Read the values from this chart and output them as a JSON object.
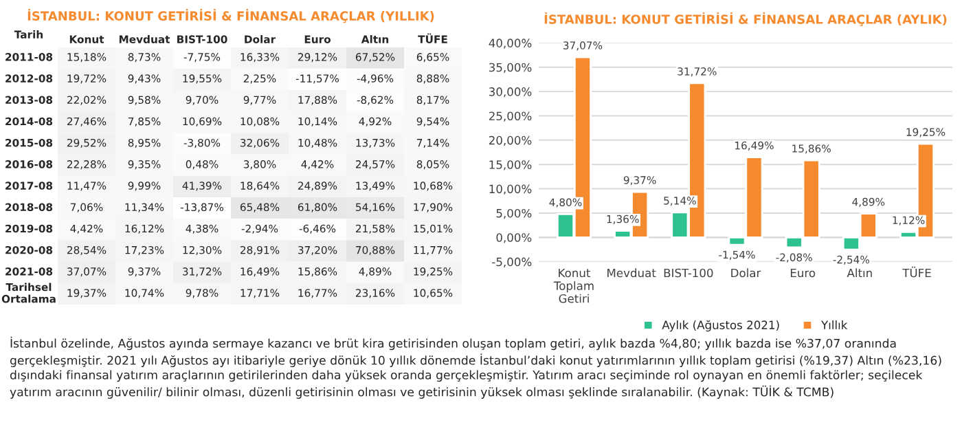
{
  "chart_data": [
    {
      "type": "heatmap",
      "title": "İSTANBUL: KONUT GETİRİSİ & FİNANSAL ARAÇLAR (YILLIK)",
      "ylabel": "Tarih",
      "categories": [
        "Konut",
        "Mevduat",
        "BIST-100",
        "Dolar",
        "Euro",
        "Altın",
        "TÜFE"
      ],
      "y_categories": [
        "2011-08",
        "2012-08",
        "2013-08",
        "2014-08",
        "2015-08",
        "2016-08",
        "2017-08",
        "2018-08",
        "2019-08",
        "2020-08",
        "2021-08",
        "Tarihsel\nOrtalama"
      ],
      "cells": [
        [
          15.18,
          8.73,
          -7.75,
          16.33,
          29.12,
          67.52,
          6.65
        ],
        [
          19.72,
          9.43,
          19.55,
          2.25,
          -11.57,
          -4.96,
          8.88
        ],
        [
          22.02,
          9.58,
          9.7,
          9.77,
          17.88,
          -8.62,
          8.17
        ],
        [
          27.46,
          7.85,
          10.69,
          10.08,
          10.14,
          4.92,
          9.54
        ],
        [
          29.52,
          8.95,
          -3.8,
          32.06,
          10.48,
          13.73,
          7.14
        ],
        [
          22.28,
          9.35,
          0.48,
          3.8,
          4.42,
          24.57,
          8.05
        ],
        [
          11.47,
          9.99,
          41.39,
          18.64,
          24.89,
          13.49,
          10.68
        ],
        [
          7.06,
          11.34,
          -13.87,
          65.48,
          61.8,
          54.16,
          17.9
        ],
        [
          4.42,
          16.12,
          4.38,
          -2.94,
          -6.46,
          21.58,
          15.01
        ],
        [
          28.54,
          17.23,
          12.3,
          28.91,
          37.2,
          70.88,
          11.77
        ],
        [
          37.07,
          9.37,
          31.72,
          16.49,
          15.86,
          4.89,
          19.25
        ],
        [
          19.37,
          10.74,
          9.78,
          17.71,
          16.77,
          23.16,
          10.65
        ]
      ],
      "cell_labels": [
        [
          "15,18%",
          "8,73%",
          "-7,75%",
          "16,33%",
          "29,12%",
          "67,52%",
          "6,65%"
        ],
        [
          "19,72%",
          "9,43%",
          "19,55%",
          "2,25%",
          "-11,57%",
          "-4,96%",
          "8,88%"
        ],
        [
          "22,02%",
          "9,58%",
          "9,70%",
          "9,77%",
          "17,88%",
          "-8,62%",
          "8,17%"
        ],
        [
          "27,46%",
          "7,85%",
          "10,69%",
          "10,08%",
          "10,14%",
          "4,92%",
          "9,54%"
        ],
        [
          "29,52%",
          "8,95%",
          "-3,80%",
          "32,06%",
          "10,48%",
          "13,73%",
          "7,14%"
        ],
        [
          "22,28%",
          "9,35%",
          "0,48%",
          "3,80%",
          "4,42%",
          "24,57%",
          "8,05%"
        ],
        [
          "11,47%",
          "9,99%",
          "41,39%",
          "18,64%",
          "24,89%",
          "13,49%",
          "10,68%"
        ],
        [
          "7,06%",
          "11,34%",
          "-13,87%",
          "65,48%",
          "61,80%",
          "54,16%",
          "17,90%"
        ],
        [
          "4,42%",
          "16,12%",
          "4,38%",
          "-2,94%",
          "-6,46%",
          "21,58%",
          "15,01%"
        ],
        [
          "28,54%",
          "17,23%",
          "12,30%",
          "28,91%",
          "37,20%",
          "70,88%",
          "11,77%"
        ],
        [
          "37,07%",
          "9,37%",
          "31,72%",
          "16,49%",
          "15,86%",
          "4,89%",
          "19,25%"
        ],
        [
          "19,37%",
          "10,74%",
          "9,78%",
          "17,71%",
          "16,77%",
          "23,16%",
          "10,65%"
        ]
      ]
    },
    {
      "type": "bar",
      "title": "İSTANBUL: KONUT GETİRİSİ & FİNANSAL ARAÇLAR (AYLIK)",
      "categories": [
        "Konut\nToplam\nGetiri",
        "Mevduat",
        "BIST-100",
        "Dolar",
        "Euro",
        "Altın",
        "TÜFE"
      ],
      "series": [
        {
          "name": "Aylık (Ağustos 2021)",
          "color": "#2ec28e",
          "values": [
            4.8,
            1.36,
            5.14,
            -1.54,
            -2.08,
            -2.54,
            1.12
          ],
          "value_labels": [
            "4,80%",
            "1,36%",
            "5,14%",
            "-1,54%",
            "-2,08%",
            "-2,54%",
            "1,12%"
          ]
        },
        {
          "name": "Yıllık",
          "color": "#f58a2e",
          "values": [
            37.07,
            9.37,
            31.72,
            16.49,
            15.86,
            4.89,
            19.25
          ],
          "value_labels": [
            "37,07%",
            "9,37%",
            "31,72%",
            "16,49%",
            "15,86%",
            "4,89%",
            "19,25%"
          ]
        }
      ],
      "ylim": [
        -5,
        40
      ],
      "yticks": [
        {
          "value": -5,
          "label": "-5,00%"
        },
        {
          "value": 0,
          "label": "0,00%"
        },
        {
          "value": 5,
          "label": "5,00%"
        },
        {
          "value": 10,
          "label": "10,00%"
        },
        {
          "value": 15,
          "label": "15,00%"
        },
        {
          "value": 20,
          "label": "20,00%"
        },
        {
          "value": 25,
          "label": "25,00%"
        },
        {
          "value": 30,
          "label": "30,00%"
        },
        {
          "value": 35,
          "label": "35,00%"
        },
        {
          "value": 40,
          "label": "40,00%"
        }
      ],
      "grid": "y",
      "legend": "bottom",
      "annotations": [
        "İstanbul özelinde, Ağustos ayında sermaye kazancı ve brüt kira getirisinden oluşan toplam getiri, aylık bazda %4,80; yıllık bazda ise %37,07 oranında gerçekleşmiştir. 2021 yılı Ağustos ayı itibariyle geriye dönük 10 yıllık dönemde İstanbul’daki konut yatırımlarının yıllık toplam getirisi (%19,37) Altın (%23,16) dışındaki finansal yatırım araçlarının getirilerinden daha yüksek oranda gerçekleşmiştir. Yatırım aracı seçiminde rol oynayan en önemli faktörler; seçilecek yatırım aracının güvenilir/ bilinir olması, düzenli getirisinin olması ve getirisinin yüksek olması şeklinde sıralanabilir. (Kaynak: TÜİK & TCMB)"
      ]
    }
  ]
}
